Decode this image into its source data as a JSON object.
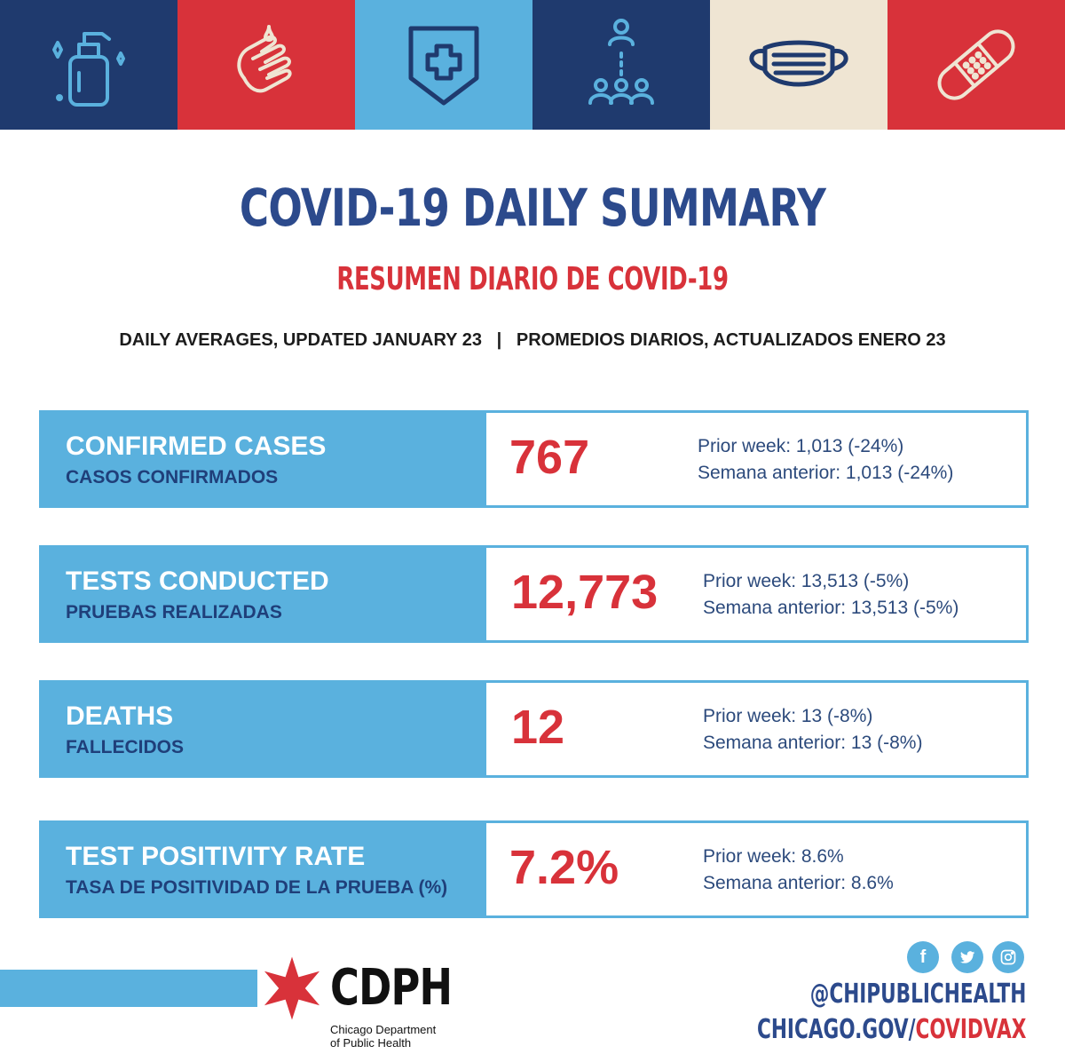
{
  "colors": {
    "navy": "#1f3a6e",
    "red": "#d8323a",
    "light_blue": "#5ab1de",
    "cream": "#efe5d3",
    "title_blue": "#2c4a8c"
  },
  "header_icons": [
    "hand-sanitizer-icon",
    "handwashing-icon",
    "medical-shield-icon",
    "social-distance-icon",
    "face-mask-icon",
    "bandage-icon"
  ],
  "title": "COVID-19 DAILY SUMMARY",
  "subtitle": "RESUMEN DIARIO DE COVID-19",
  "updated": {
    "english": "DAILY AVERAGES, UPDATED JANUARY 23",
    "separator": "|",
    "spanish": "PROMEDIOS DIARIOS, ACTUALIZADOS ENERO 23"
  },
  "metrics": [
    {
      "label": "CONFIRMED CASES",
      "sublabel": "CASOS CONFIRMADOS",
      "value": "767",
      "prior_en": "Prior week: 1,013 (-24%)",
      "prior_es": "Semana anterior: 1,013 (-24%)"
    },
    {
      "label": "TESTS CONDUCTED",
      "sublabel": "PRUEBAS REALIZADAS",
      "value": "12,773",
      "prior_en": "Prior week: 13,513 (-5%)",
      "prior_es": "Semana anterior: 13,513 (-5%)"
    },
    {
      "label": "DEATHS",
      "sublabel": "FALLECIDOS",
      "value": "12",
      "prior_en": "Prior week: 13 (-8%)",
      "prior_es": "Semana anterior: 13 (-8%)"
    },
    {
      "label": "TEST POSITIVITY RATE",
      "sublabel": "TASA DE POSITIVIDAD DE LA PRUEBA (%)",
      "value": "7.2%",
      "prior_en": "Prior week: 8.6%",
      "prior_es": "Semana anterior: 8.6%"
    }
  ],
  "footer": {
    "logo_text": "CDPH",
    "logo_sub_1": "Chicago Department",
    "logo_sub_2": "of Public Health",
    "social_icons": [
      "facebook-icon",
      "twitter-icon",
      "instagram-icon"
    ],
    "handle": "@CHIPUBLICHEALTH",
    "url_prefix": "CHICAGO.GOV/",
    "url_suffix": "COVIDVAX"
  }
}
